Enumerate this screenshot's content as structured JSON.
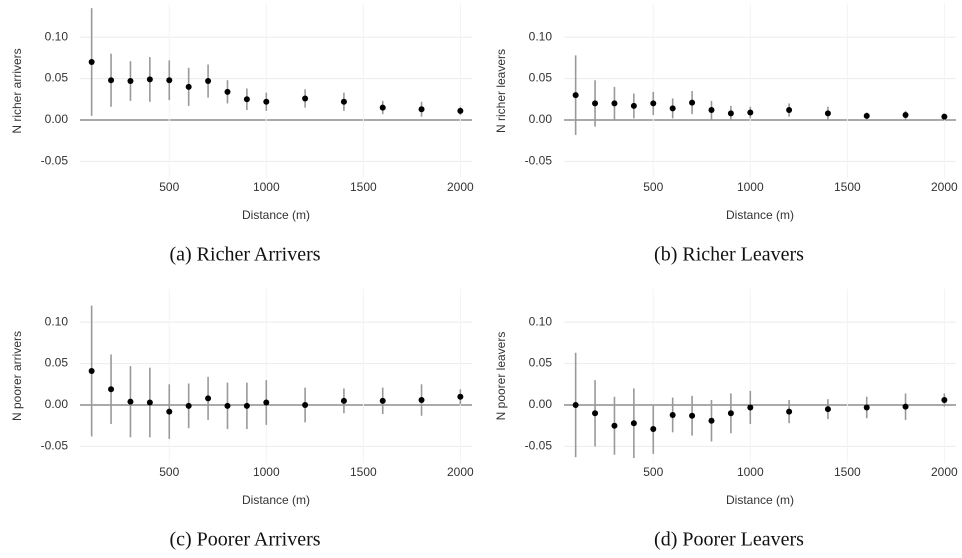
{
  "chart_data": [
    {
      "type": "scatter",
      "title": "(a) Richer Arrivers",
      "ylabel": "N richer arrivers",
      "xlabel": "Distance (m)",
      "x": [
        100,
        200,
        300,
        400,
        500,
        600,
        700,
        800,
        900,
        1000,
        1200,
        1400,
        1600,
        1800,
        2000
      ],
      "values": [
        0.07,
        0.048,
        0.047,
        0.049,
        0.048,
        0.04,
        0.047,
        0.034,
        0.025,
        0.022,
        0.026,
        0.022,
        0.015,
        0.013,
        0.011
      ],
      "errors": [
        0.065,
        0.032,
        0.024,
        0.027,
        0.024,
        0.023,
        0.02,
        0.014,
        0.013,
        0.011,
        0.011,
        0.011,
        0.008,
        0.009,
        0.005
      ],
      "color": "#000000",
      "error_color": "#999999",
      "grid": true,
      "xlim": [
        40,
        2060
      ],
      "ylim": [
        -0.07,
        0.14
      ],
      "xticks": [
        500,
        1000,
        1500,
        2000
      ],
      "yticks": [
        -0.05,
        {
          "value": 0,
          "label": "0.00"
        },
        0.05,
        {
          "value": 0.1,
          "label": "0.10"
        }
      ]
    },
    {
      "type": "scatter",
      "title": "(b) Richer Leavers",
      "ylabel": "N richer leavers",
      "xlabel": "Distance (m)",
      "x": [
        100,
        200,
        300,
        400,
        500,
        600,
        700,
        800,
        900,
        1000,
        1200,
        1400,
        1600,
        1800,
        2000
      ],
      "values": [
        0.03,
        0.02,
        0.02,
        0.017,
        0.02,
        0.014,
        0.021,
        0.012,
        0.008,
        0.009,
        0.012,
        0.008,
        0.005,
        0.006,
        0.004
      ],
      "errors": [
        0.048,
        0.028,
        0.02,
        0.015,
        0.014,
        0.012,
        0.014,
        0.011,
        0.009,
        0.007,
        0.008,
        0.008,
        0.004,
        0.005,
        0.003
      ],
      "color": "#000000",
      "error_color": "#999999",
      "grid": true,
      "xlim": [
        40,
        2060
      ],
      "ylim": [
        -0.07,
        0.14
      ],
      "xticks": [
        500,
        1000,
        1500,
        2000
      ],
      "yticks": [
        -0.05,
        {
          "value": 0,
          "label": "0.00"
        },
        0.05,
        {
          "value": 0.1,
          "label": "0.10"
        }
      ]
    },
    {
      "type": "scatter",
      "title": "(c) Poorer Arrivers",
      "ylabel": "N poorer arrivers",
      "xlabel": "Distance (m)",
      "x": [
        100,
        200,
        300,
        400,
        500,
        600,
        700,
        800,
        900,
        1000,
        1200,
        1400,
        1600,
        1800,
        2000
      ],
      "values": [
        0.041,
        0.019,
        0.004,
        0.003,
        -0.008,
        -0.001,
        0.008,
        -0.001,
        -0.001,
        0.003,
        0.0,
        0.005,
        0.005,
        0.006,
        0.01
      ],
      "errors": [
        0.079,
        0.042,
        0.043,
        0.042,
        0.033,
        0.027,
        0.026,
        0.028,
        0.028,
        0.027,
        0.021,
        0.015,
        0.016,
        0.019,
        0.009
      ],
      "color": "#000000",
      "error_color": "#999999",
      "grid": true,
      "xlim": [
        40,
        2060
      ],
      "ylim": [
        -0.07,
        0.14
      ],
      "xticks": [
        500,
        1000,
        1500,
        2000
      ],
      "yticks": [
        -0.05,
        {
          "value": 0,
          "label": "0.00"
        },
        0.05,
        {
          "value": 0.1,
          "label": "0.10"
        }
      ]
    },
    {
      "type": "scatter",
      "title": "(d) Poorer Leavers",
      "ylabel": "N poorer leavers",
      "xlabel": "Distance (m)",
      "x": [
        100,
        200,
        300,
        400,
        500,
        600,
        700,
        800,
        900,
        1000,
        1200,
        1400,
        1600,
        1800,
        2000
      ],
      "values": [
        0.0,
        -0.01,
        -0.025,
        -0.022,
        -0.029,
        -0.012,
        -0.013,
        -0.019,
        -0.01,
        -0.003,
        -0.008,
        -0.005,
        -0.003,
        -0.002,
        0.006
      ],
      "errors": [
        0.063,
        0.04,
        0.035,
        0.042,
        0.03,
        0.021,
        0.024,
        0.025,
        0.024,
        0.02,
        0.014,
        0.012,
        0.013,
        0.016,
        0.008
      ],
      "color": "#000000",
      "error_color": "#999999",
      "grid": true,
      "xlim": [
        40,
        2060
      ],
      "ylim": [
        -0.07,
        0.14
      ],
      "xticks": [
        500,
        1000,
        1500,
        2000
      ],
      "yticks": [
        -0.05,
        {
          "value": 0,
          "label": "0.00"
        },
        0.05,
        {
          "value": 0.1,
          "label": "0.10"
        }
      ]
    }
  ]
}
